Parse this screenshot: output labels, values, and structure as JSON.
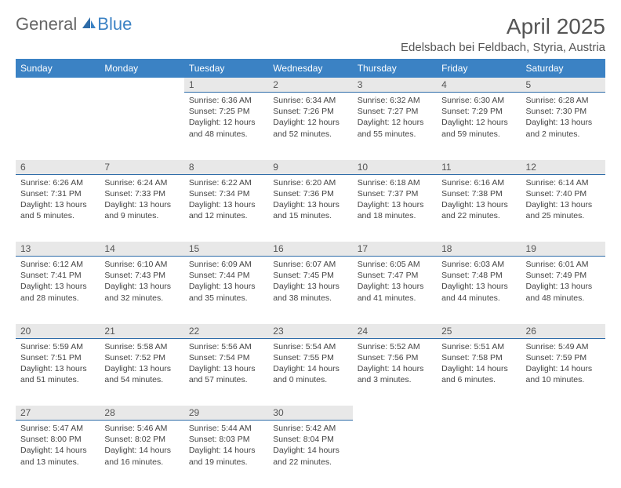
{
  "logo": {
    "text1": "General",
    "text2": "Blue"
  },
  "title": "April 2025",
  "location": "Edelsbach bei Feldbach, Styria, Austria",
  "colors": {
    "header_bg": "#3b82c4",
    "header_fg": "#ffffff",
    "daynum_bg": "#e8e8e8",
    "daynum_border": "#2e6ca8",
    "text": "#444444",
    "title_color": "#555555"
  },
  "weekdays": [
    "Sunday",
    "Monday",
    "Tuesday",
    "Wednesday",
    "Thursday",
    "Friday",
    "Saturday"
  ],
  "weeks": [
    [
      null,
      null,
      {
        "n": "1",
        "sr": "Sunrise: 6:36 AM",
        "ss": "Sunset: 7:25 PM",
        "dl": "Daylight: 12 hours and 48 minutes."
      },
      {
        "n": "2",
        "sr": "Sunrise: 6:34 AM",
        "ss": "Sunset: 7:26 PM",
        "dl": "Daylight: 12 hours and 52 minutes."
      },
      {
        "n": "3",
        "sr": "Sunrise: 6:32 AM",
        "ss": "Sunset: 7:27 PM",
        "dl": "Daylight: 12 hours and 55 minutes."
      },
      {
        "n": "4",
        "sr": "Sunrise: 6:30 AM",
        "ss": "Sunset: 7:29 PM",
        "dl": "Daylight: 12 hours and 59 minutes."
      },
      {
        "n": "5",
        "sr": "Sunrise: 6:28 AM",
        "ss": "Sunset: 7:30 PM",
        "dl": "Daylight: 13 hours and 2 minutes."
      }
    ],
    [
      {
        "n": "6",
        "sr": "Sunrise: 6:26 AM",
        "ss": "Sunset: 7:31 PM",
        "dl": "Daylight: 13 hours and 5 minutes."
      },
      {
        "n": "7",
        "sr": "Sunrise: 6:24 AM",
        "ss": "Sunset: 7:33 PM",
        "dl": "Daylight: 13 hours and 9 minutes."
      },
      {
        "n": "8",
        "sr": "Sunrise: 6:22 AM",
        "ss": "Sunset: 7:34 PM",
        "dl": "Daylight: 13 hours and 12 minutes."
      },
      {
        "n": "9",
        "sr": "Sunrise: 6:20 AM",
        "ss": "Sunset: 7:36 PM",
        "dl": "Daylight: 13 hours and 15 minutes."
      },
      {
        "n": "10",
        "sr": "Sunrise: 6:18 AM",
        "ss": "Sunset: 7:37 PM",
        "dl": "Daylight: 13 hours and 18 minutes."
      },
      {
        "n": "11",
        "sr": "Sunrise: 6:16 AM",
        "ss": "Sunset: 7:38 PM",
        "dl": "Daylight: 13 hours and 22 minutes."
      },
      {
        "n": "12",
        "sr": "Sunrise: 6:14 AM",
        "ss": "Sunset: 7:40 PM",
        "dl": "Daylight: 13 hours and 25 minutes."
      }
    ],
    [
      {
        "n": "13",
        "sr": "Sunrise: 6:12 AM",
        "ss": "Sunset: 7:41 PM",
        "dl": "Daylight: 13 hours and 28 minutes."
      },
      {
        "n": "14",
        "sr": "Sunrise: 6:10 AM",
        "ss": "Sunset: 7:43 PM",
        "dl": "Daylight: 13 hours and 32 minutes."
      },
      {
        "n": "15",
        "sr": "Sunrise: 6:09 AM",
        "ss": "Sunset: 7:44 PM",
        "dl": "Daylight: 13 hours and 35 minutes."
      },
      {
        "n": "16",
        "sr": "Sunrise: 6:07 AM",
        "ss": "Sunset: 7:45 PM",
        "dl": "Daylight: 13 hours and 38 minutes."
      },
      {
        "n": "17",
        "sr": "Sunrise: 6:05 AM",
        "ss": "Sunset: 7:47 PM",
        "dl": "Daylight: 13 hours and 41 minutes."
      },
      {
        "n": "18",
        "sr": "Sunrise: 6:03 AM",
        "ss": "Sunset: 7:48 PM",
        "dl": "Daylight: 13 hours and 44 minutes."
      },
      {
        "n": "19",
        "sr": "Sunrise: 6:01 AM",
        "ss": "Sunset: 7:49 PM",
        "dl": "Daylight: 13 hours and 48 minutes."
      }
    ],
    [
      {
        "n": "20",
        "sr": "Sunrise: 5:59 AM",
        "ss": "Sunset: 7:51 PM",
        "dl": "Daylight: 13 hours and 51 minutes."
      },
      {
        "n": "21",
        "sr": "Sunrise: 5:58 AM",
        "ss": "Sunset: 7:52 PM",
        "dl": "Daylight: 13 hours and 54 minutes."
      },
      {
        "n": "22",
        "sr": "Sunrise: 5:56 AM",
        "ss": "Sunset: 7:54 PM",
        "dl": "Daylight: 13 hours and 57 minutes."
      },
      {
        "n": "23",
        "sr": "Sunrise: 5:54 AM",
        "ss": "Sunset: 7:55 PM",
        "dl": "Daylight: 14 hours and 0 minutes."
      },
      {
        "n": "24",
        "sr": "Sunrise: 5:52 AM",
        "ss": "Sunset: 7:56 PM",
        "dl": "Daylight: 14 hours and 3 minutes."
      },
      {
        "n": "25",
        "sr": "Sunrise: 5:51 AM",
        "ss": "Sunset: 7:58 PM",
        "dl": "Daylight: 14 hours and 6 minutes."
      },
      {
        "n": "26",
        "sr": "Sunrise: 5:49 AM",
        "ss": "Sunset: 7:59 PM",
        "dl": "Daylight: 14 hours and 10 minutes."
      }
    ],
    [
      {
        "n": "27",
        "sr": "Sunrise: 5:47 AM",
        "ss": "Sunset: 8:00 PM",
        "dl": "Daylight: 14 hours and 13 minutes."
      },
      {
        "n": "28",
        "sr": "Sunrise: 5:46 AM",
        "ss": "Sunset: 8:02 PM",
        "dl": "Daylight: 14 hours and 16 minutes."
      },
      {
        "n": "29",
        "sr": "Sunrise: 5:44 AM",
        "ss": "Sunset: 8:03 PM",
        "dl": "Daylight: 14 hours and 19 minutes."
      },
      {
        "n": "30",
        "sr": "Sunrise: 5:42 AM",
        "ss": "Sunset: 8:04 PM",
        "dl": "Daylight: 14 hours and 22 minutes."
      },
      null,
      null,
      null
    ]
  ]
}
